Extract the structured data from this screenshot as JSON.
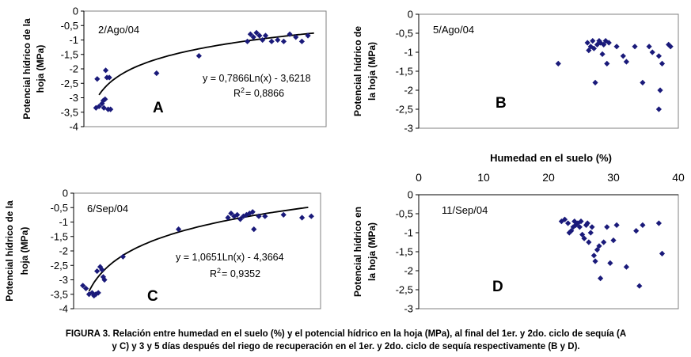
{
  "figure": {
    "caption_line1": "FIGURA 3. Relación entre humedad en el suelo (%) y el potencial hídrico en la hoja (MPa), al final del 1er. y 2do. ciclo de sequía (A",
    "caption_line2": "y C) y 3 y 5 días después del riego de recuperación en el 1er. y 2do. ciclo de sequía respectivamente (B y D).",
    "shared_xlabel": "Humedad en el suelo (%)",
    "colors": {
      "marker": "#1a1a7a",
      "curve": "#000000",
      "plot_border": "#808080",
      "background": "#ffffff"
    }
  },
  "chart_data": [
    {
      "id": "A",
      "type": "scatter",
      "panel_label": "A",
      "date_label": "2/Ago/04",
      "ylabel_lines": [
        "Potencial hídrico de la",
        "hoja (MPa)"
      ],
      "xlim": [
        0,
        40
      ],
      "ylim": [
        -4,
        0
      ],
      "y_ticks": [
        0,
        -0.5,
        -1,
        -1.5,
        -2,
        -2.5,
        -3,
        -3.5,
        -4
      ],
      "y_tick_labels": [
        "0",
        "-0,5",
        "-1",
        "-1,5",
        "-2",
        "-2,5",
        "-3",
        "-3,5",
        "-4"
      ],
      "show_x_ticks": false,
      "trendline": {
        "type": "log",
        "a": 0.7866,
        "b": -3.6218,
        "x_from": 2.5,
        "x_to": 38
      },
      "equation": "y = 0,7866Ln(x) - 3,6218",
      "r2_prefix": "R",
      "r2_sup": "2",
      "r2_value": "= 0,8866",
      "points": [
        [
          2,
          -3.35
        ],
        [
          2.2,
          -2.35
        ],
        [
          2.5,
          -3.3
        ],
        [
          3,
          -3.2
        ],
        [
          3.2,
          -3.1
        ],
        [
          3.3,
          -3.35
        ],
        [
          3.5,
          -3.05
        ],
        [
          3.6,
          -2.05
        ],
        [
          3.8,
          -2.3
        ],
        [
          4,
          -3.4
        ],
        [
          4.2,
          -2.3
        ],
        [
          4.4,
          -3.4
        ],
        [
          12,
          -2.15
        ],
        [
          19,
          -1.55
        ],
        [
          27,
          -1.05
        ],
        [
          27.5,
          -0.8
        ],
        [
          28,
          -0.9
        ],
        [
          28.5,
          -0.75
        ],
        [
          29,
          -0.85
        ],
        [
          29.5,
          -1.0
        ],
        [
          30,
          -0.85
        ],
        [
          31,
          -1.05
        ],
        [
          32,
          -1.0
        ],
        [
          33,
          -1.05
        ],
        [
          34,
          -0.8
        ],
        [
          35,
          -0.9
        ],
        [
          36,
          -1.05
        ],
        [
          37,
          -0.85
        ]
      ]
    },
    {
      "id": "B",
      "type": "scatter",
      "panel_label": "B",
      "date_label": "5/Ago/04",
      "ylabel_lines": [
        "Potencial hídrico de",
        "la hoja (MPa)"
      ],
      "xlim": [
        0,
        40
      ],
      "ylim": [
        -3,
        0
      ],
      "y_ticks": [
        0,
        -0.5,
        -1,
        -1.5,
        -2,
        -2.5,
        -3
      ],
      "y_tick_labels": [
        "0",
        "-0,5",
        "-1",
        "-1,5",
        "-2",
        "-2,5",
        "-3"
      ],
      "show_x_ticks": false,
      "points": [
        [
          21.5,
          -1.3
        ],
        [
          26,
          -0.75
        ],
        [
          26.2,
          -0.95
        ],
        [
          26.5,
          -0.85
        ],
        [
          26.8,
          -0.7
        ],
        [
          27,
          -0.9
        ],
        [
          27.2,
          -1.8
        ],
        [
          27.5,
          -0.8
        ],
        [
          27.8,
          -0.7
        ],
        [
          28,
          -0.75
        ],
        [
          28.3,
          -1.05
        ],
        [
          28.5,
          -0.8
        ],
        [
          28.8,
          -0.7
        ],
        [
          29,
          -1.3
        ],
        [
          29.3,
          -0.75
        ],
        [
          30.5,
          -0.85
        ],
        [
          31.5,
          -1.1
        ],
        [
          32,
          -1.25
        ],
        [
          33.3,
          -0.85
        ],
        [
          34.5,
          -1.8
        ],
        [
          35.5,
          -0.85
        ],
        [
          36,
          -1.0
        ],
        [
          37,
          -1.1
        ],
        [
          37.2,
          -2.0
        ],
        [
          37.5,
          -1.3
        ],
        [
          37,
          -2.5
        ],
        [
          38.5,
          -0.8
        ],
        [
          38.8,
          -0.85
        ]
      ]
    },
    {
      "id": "C",
      "type": "scatter",
      "panel_label": "C",
      "date_label": "6/Sep/04",
      "ylabel_lines": [
        "Potencial hídrico de la",
        "hoja (MPa)"
      ],
      "xlim": [
        0,
        40
      ],
      "ylim": [
        -4,
        0
      ],
      "y_ticks": [
        0,
        -0.5,
        -1,
        -1.5,
        -2,
        -2.5,
        -3,
        -3.5,
        -4
      ],
      "y_tick_labels": [
        "0",
        "-0,5",
        "-1",
        "-1,5",
        "-2",
        "-2,5",
        "-3",
        "-3,5",
        "-4"
      ],
      "show_x_ticks": false,
      "trendline": {
        "type": "log",
        "a": 1.0651,
        "b": -4.3664,
        "x_from": 2.5,
        "x_to": 38
      },
      "equation": "y = 1,0651Ln(x) - 4,3664",
      "r2_prefix": "R",
      "r2_sup": "2",
      "r2_value": "= 0,9352",
      "points": [
        [
          1.5,
          -3.2
        ],
        [
          2,
          -3.3
        ],
        [
          2.5,
          -3.5
        ],
        [
          3,
          -3.45
        ],
        [
          3.3,
          -3.55
        ],
        [
          3.6,
          -3.5
        ],
        [
          3.8,
          -2.7
        ],
        [
          4,
          -3.45
        ],
        [
          4.3,
          -2.55
        ],
        [
          4.6,
          -2.65
        ],
        [
          4.8,
          -2.9
        ],
        [
          5,
          -3.0
        ],
        [
          8,
          -2.2
        ],
        [
          17,
          -1.25
        ],
        [
          25,
          -0.85
        ],
        [
          25.5,
          -0.7
        ],
        [
          26,
          -0.8
        ],
        [
          26.5,
          -0.75
        ],
        [
          27,
          -0.9
        ],
        [
          27.5,
          -0.8
        ],
        [
          28,
          -0.75
        ],
        [
          28.5,
          -0.7
        ],
        [
          29,
          -0.65
        ],
        [
          29.2,
          -1.25
        ],
        [
          30,
          -0.8
        ],
        [
          31,
          -0.8
        ],
        [
          34,
          -0.75
        ],
        [
          37,
          -0.85
        ],
        [
          38.5,
          -0.8
        ]
      ]
    },
    {
      "id": "D",
      "type": "scatter",
      "panel_label": "D",
      "date_label": "11/Sep/04",
      "ylabel_lines": [
        "Potencial hídrico en",
        "la hoja (MPa)"
      ],
      "xlim": [
        0,
        40
      ],
      "ylim": [
        -3,
        0
      ],
      "y_ticks": [
        0,
        -0.5,
        -1,
        -1.5,
        -2,
        -2.5,
        -3
      ],
      "y_tick_labels": [
        "0",
        "-0,5",
        "-1",
        "-1,5",
        "-2",
        "-2,5",
        "-3"
      ],
      "show_x_ticks": true,
      "x_ticks": [
        0,
        10,
        20,
        30,
        40
      ],
      "x_tick_labels": [
        "0",
        "10",
        "20",
        "30",
        "40"
      ],
      "points": [
        [
          22,
          -0.7
        ],
        [
          22.5,
          -0.65
        ],
        [
          23,
          -0.75
        ],
        [
          23.2,
          -1.0
        ],
        [
          23.5,
          -0.95
        ],
        [
          23.8,
          -0.85
        ],
        [
          24,
          -0.7
        ],
        [
          24.2,
          -0.8
        ],
        [
          24.5,
          -0.75
        ],
        [
          24.8,
          -0.85
        ],
        [
          25,
          -0.7
        ],
        [
          25.2,
          -1.05
        ],
        [
          25.5,
          -1.15
        ],
        [
          25.8,
          -0.8
        ],
        [
          26,
          -0.75
        ],
        [
          26.2,
          -1.25
        ],
        [
          26.5,
          -1.0
        ],
        [
          26.7,
          -0.85
        ],
        [
          27,
          -1.6
        ],
        [
          27.2,
          -1.75
        ],
        [
          27.5,
          -1.45
        ],
        [
          27.8,
          -1.35
        ],
        [
          28,
          -2.2
        ],
        [
          28.5,
          -1.25
        ],
        [
          29,
          -0.85
        ],
        [
          29.5,
          -1.8
        ],
        [
          30,
          -1.2
        ],
        [
          30.5,
          -0.8
        ],
        [
          32,
          -1.9
        ],
        [
          33.5,
          -0.95
        ],
        [
          34,
          -2.4
        ],
        [
          34.5,
          -0.8
        ],
        [
          37,
          -0.75
        ],
        [
          37.5,
          -1.55
        ]
      ]
    }
  ]
}
